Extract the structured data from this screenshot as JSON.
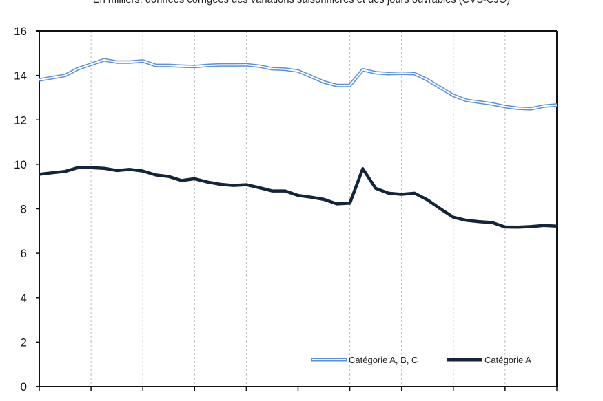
{
  "chart_data": {
    "type": "line",
    "title": "",
    "subtitle": "En milliers, données corrigées des variations saisonnières et des jours ouvrables (CVS-CJO)",
    "xlabel": "",
    "ylabel": "",
    "ylim": [
      0,
      16
    ],
    "yticks": [
      0,
      2,
      4,
      6,
      8,
      10,
      12,
      14,
      16
    ],
    "x_gridlines": 10,
    "grid": "vertical dashed",
    "legend_position": "bottom-right",
    "series": [
      {
        "name": "Catégorie A, B, C",
        "color": "#5b8fd6",
        "style": "double",
        "values": [
          13.8,
          13.9,
          14.0,
          14.3,
          14.5,
          14.7,
          14.6,
          14.6,
          14.65,
          14.45,
          14.45,
          14.42,
          14.4,
          14.45,
          14.47,
          14.47,
          14.48,
          14.42,
          14.3,
          14.28,
          14.2,
          13.95,
          13.7,
          13.55,
          13.55,
          14.25,
          14.12,
          14.08,
          14.1,
          14.08,
          13.8,
          13.45,
          13.1,
          12.88,
          12.8,
          12.72,
          12.6,
          12.52,
          12.5,
          12.62,
          12.67
        ]
      },
      {
        "name": "Catégorie A",
        "color": "#14243a",
        "style": "solid",
        "values": [
          9.55,
          9.62,
          9.68,
          9.85,
          9.85,
          9.82,
          9.72,
          9.77,
          9.7,
          9.52,
          9.45,
          9.27,
          9.35,
          9.2,
          9.1,
          9.05,
          9.08,
          8.95,
          8.8,
          8.8,
          8.6,
          8.52,
          8.42,
          8.22,
          8.25,
          9.8,
          8.92,
          8.7,
          8.65,
          8.7,
          8.4,
          8.0,
          7.62,
          7.48,
          7.42,
          7.38,
          7.18,
          7.17,
          7.2,
          7.25,
          7.22
        ]
      }
    ]
  }
}
